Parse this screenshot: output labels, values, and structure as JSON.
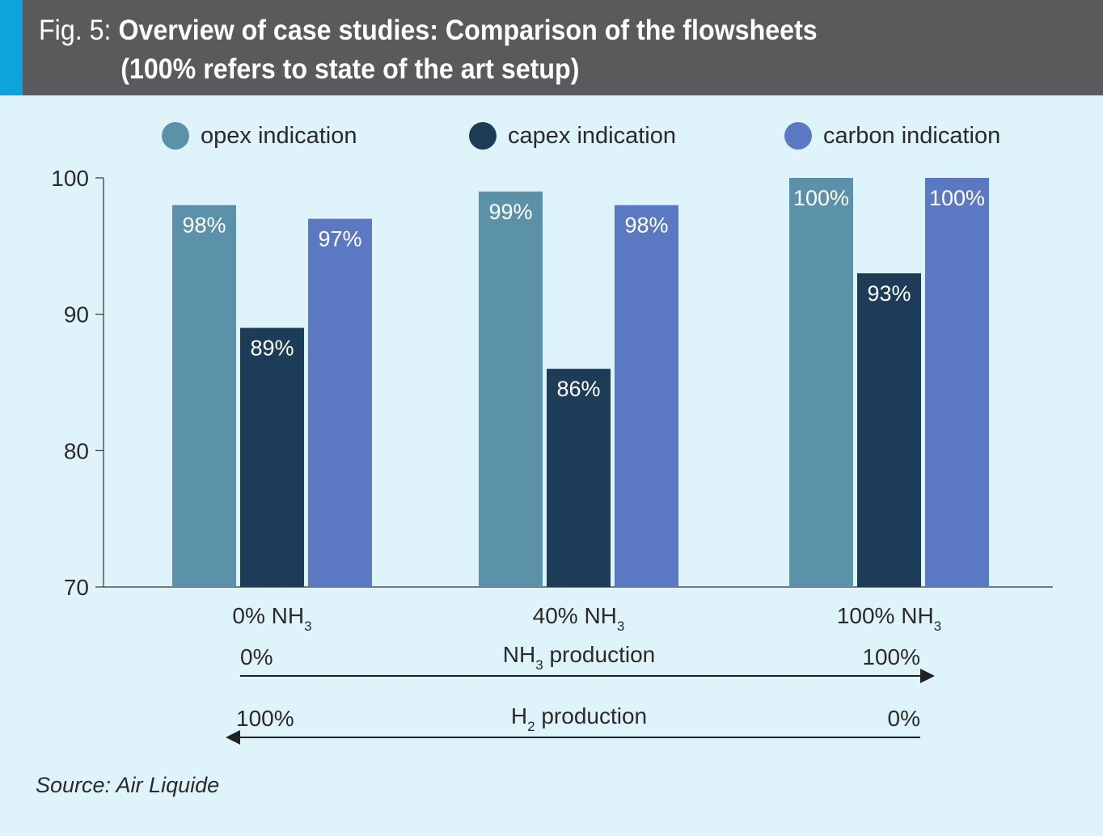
{
  "header": {
    "fig_label": "Fig. 5:",
    "title": "Overview of case studies: Comparison of the flowsheets",
    "subtitle": "(100% refers to state of the art setup)"
  },
  "colors": {
    "header_bg": "#5a5a5c",
    "accent": "#0fa3dc",
    "background": "#dff3fb",
    "opex": "#5b92aa",
    "capex": "#1c3c58",
    "carbon": "#5b79c3"
  },
  "chart_data": {
    "type": "bar",
    "categories": [
      "0% NH3",
      "40% NH3",
      "100% NH3"
    ],
    "category_labels": [
      {
        "main": "0% NH",
        "sub": "3"
      },
      {
        "main": "40% NH",
        "sub": "3"
      },
      {
        "main": "100% NH",
        "sub": "3"
      }
    ],
    "series": [
      {
        "name": "opex indication",
        "values": [
          98,
          99,
          100
        ],
        "labels": [
          "98%",
          "99%",
          "100%"
        ]
      },
      {
        "name": "capex indication",
        "values": [
          89,
          86,
          93
        ],
        "labels": [
          "89%",
          "86%",
          "93%"
        ]
      },
      {
        "name": "carbon indication",
        "values": [
          97,
          98,
          100
        ],
        "labels": [
          "97%",
          "98%",
          "100%"
        ]
      }
    ],
    "ylim": [
      70,
      100
    ],
    "yticks": [
      70,
      80,
      90,
      100
    ],
    "ytick_labels": [
      "70",
      "80",
      "90",
      "100"
    ],
    "grid": false,
    "legend_position": "top"
  },
  "arrows": {
    "nh3": {
      "left": "0%",
      "right": "100%",
      "label_main": "NH",
      "label_sub": "3",
      "label_rest": " production",
      "direction": "right"
    },
    "h2": {
      "left": "100%",
      "right": "0%",
      "label_main": "H",
      "label_sub": "2",
      "label_rest": " production",
      "direction": "left"
    }
  },
  "source": "Source: Air Liquide"
}
